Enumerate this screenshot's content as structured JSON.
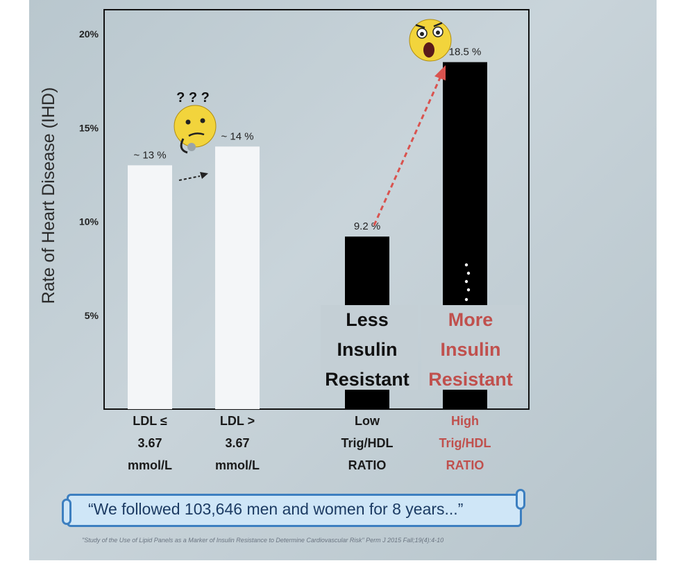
{
  "chart_data": {
    "type": "bar",
    "ylabel": "Rate of Heart Disease (IHD)",
    "ylim": [
      0,
      21
    ],
    "yticks": [
      {
        "value": 5,
        "label": "5%"
      },
      {
        "value": 10,
        "label": "10%"
      },
      {
        "value": 15,
        "label": "15%"
      },
      {
        "value": 20,
        "label": "20%"
      }
    ],
    "bars": [
      {
        "name": "bar-ldl-low",
        "value": 13,
        "data_label": "~ 13 %",
        "category_lines": [
          "LDL ≤",
          "3.67",
          "mmol/L"
        ],
        "color": "#f4f6f8",
        "label_color": "#1a1a1a"
      },
      {
        "name": "bar-ldl-high",
        "value": 14,
        "data_label": "~ 14 %",
        "category_lines": [
          "LDL >",
          "3.67",
          "mmol/L"
        ],
        "color": "#f4f6f8",
        "label_color": "#1a1a1a"
      },
      {
        "name": "bar-trig-low",
        "value": 9.2,
        "data_label": "9.2 %",
        "category_lines": [
          "Low",
          "Trig/HDL",
          "RATIO"
        ],
        "color": "#000000",
        "label_color": "#1a1a1a"
      },
      {
        "name": "bar-trig-high",
        "value": 18.5,
        "data_label": "18.5 %",
        "category_lines": [
          "High",
          "Trig/HDL",
          "RATIO"
        ],
        "color": "#000000",
        "label_color": "#c0504d"
      }
    ],
    "annotations": {
      "question_marks": "? ? ?",
      "less_resistant": [
        "Less",
        "Insulin",
        "Resistant"
      ],
      "more_resistant": [
        "More",
        "Insulin",
        "Resistant"
      ]
    }
  },
  "colors": {
    "accent_red": "#c0504d",
    "arrow_red": "#d9534f",
    "emoji_yellow": "#f2d43c"
  },
  "quote": "“We followed 103,646 men and women for 8 years...”",
  "citation": "\"Study of the Use of Lipid Panels as a Marker of Insulin Resistance to Determine Cardiovascular Risk\" Perm J 2015 Fall;19(4):4-10"
}
